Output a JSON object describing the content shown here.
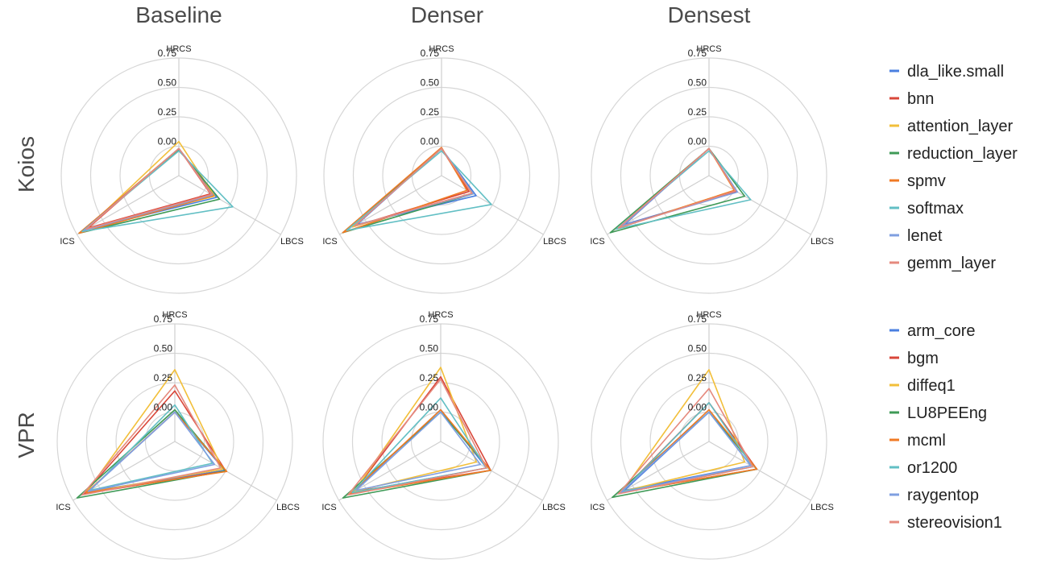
{
  "column_titles": [
    "Baseline",
    "Denser",
    "Densest"
  ],
  "row_titles": [
    "Koios",
    "VPR"
  ],
  "colors": {
    "blue": "#4a7fe0",
    "red": "#d9473a",
    "yellow": "#f2bf3a",
    "green": "#3f9a57",
    "orange": "#f07a24",
    "teal": "#62bfc4",
    "lightblue": "#7f9fe0",
    "salmon": "#e58a7e"
  },
  "legends": [
    {
      "items": [
        {
          "label": "dla_like.small",
          "color": "#4a7fe0"
        },
        {
          "label": "bnn",
          "color": "#d9473a"
        },
        {
          "label": "attention_layer",
          "color": "#f2bf3a"
        },
        {
          "label": "reduction_layer",
          "color": "#3f9a57"
        },
        {
          "label": "spmv",
          "color": "#f07a24"
        },
        {
          "label": "softmax",
          "color": "#62bfc4"
        },
        {
          "label": "lenet",
          "color": "#7f9fe0"
        },
        {
          "label": "gemm_layer",
          "color": "#e58a7e"
        }
      ]
    },
    {
      "items": [
        {
          "label": "arm_core",
          "color": "#4a7fe0"
        },
        {
          "label": "bgm",
          "color": "#d9473a"
        },
        {
          "label": "diffeq1",
          "color": "#f2bf3a"
        },
        {
          "label": "LU8PEEng",
          "color": "#3f9a57"
        },
        {
          "label": "mcml",
          "color": "#f07a24"
        },
        {
          "label": "or1200",
          "color": "#62bfc4"
        },
        {
          "label": "raygentop",
          "color": "#7f9fe0"
        },
        {
          "label": "stereovision1",
          "color": "#e58a7e"
        }
      ]
    }
  ],
  "chart_data": [
    {
      "type": "radar",
      "row": "Koios",
      "column": "Baseline",
      "axes": [
        "HRCS",
        "LBCS",
        "ICS"
      ],
      "ticks": [
        "0.00",
        "0.25",
        "0.50",
        "0.75"
      ],
      "rlim": [
        -0.25,
        0.75
      ],
      "series": [
        {
          "name": "dla_like.small",
          "color": "#4a7fe0",
          "values": [
            -0.02,
            0.12,
            0.67
          ]
        },
        {
          "name": "bnn",
          "color": "#d9473a",
          "values": [
            -0.02,
            0.06,
            0.64
          ]
        },
        {
          "name": "attention_layer",
          "color": "#f2bf3a",
          "values": [
            0.04,
            0.1,
            0.66
          ]
        },
        {
          "name": "reduction_layer",
          "color": "#3f9a57",
          "values": [
            -0.03,
            0.15,
            0.73
          ]
        },
        {
          "name": "spmv",
          "color": "#f07a24",
          "values": [
            -0.02,
            0.09,
            0.73
          ]
        },
        {
          "name": "softmax",
          "color": "#62bfc4",
          "values": [
            -0.04,
            0.28,
            0.7
          ]
        },
        {
          "name": "lenet",
          "color": "#7f9fe0",
          "values": [
            -0.02,
            0.08,
            0.68
          ]
        },
        {
          "name": "gemm_layer",
          "color": "#e58a7e",
          "values": [
            -0.02,
            0.07,
            0.66
          ]
        }
      ]
    },
    {
      "type": "radar",
      "row": "Koios",
      "column": "Denser",
      "axes": [
        "HRCS",
        "LBCS",
        "ICS"
      ],
      "ticks": [
        "0.00",
        "0.25",
        "0.50",
        "0.75"
      ],
      "rlim": [
        -0.25,
        0.75
      ],
      "series": [
        {
          "name": "dla_like.small",
          "color": "#4a7fe0",
          "values": [
            -0.02,
            0.09,
            0.58
          ]
        },
        {
          "name": "bnn",
          "color": "#d9473a",
          "values": [
            -0.02,
            0.02,
            0.62
          ]
        },
        {
          "name": "attention_layer",
          "color": "#f2bf3a",
          "values": [
            -0.02,
            0.05,
            0.62
          ]
        },
        {
          "name": "reduction_layer",
          "color": "#3f9a57",
          "values": [
            -0.02,
            0.06,
            0.72
          ]
        },
        {
          "name": "spmv",
          "color": "#f07a24",
          "values": [
            -0.01,
            0.0,
            0.72
          ]
        },
        {
          "name": "softmax",
          "color": "#62bfc4",
          "values": [
            -0.04,
            0.24,
            0.68
          ]
        },
        {
          "name": "lenet",
          "color": "#7f9fe0",
          "values": [
            -0.02,
            0.06,
            0.6
          ]
        },
        {
          "name": "gemm_layer",
          "color": "#e58a7e",
          "values": [
            -0.02,
            0.05,
            0.6
          ]
        }
      ]
    },
    {
      "type": "radar",
      "row": "Koios",
      "column": "Densest",
      "axes": [
        "HRCS",
        "LBCS",
        "ICS"
      ],
      "ticks": [
        "0.00",
        "0.25",
        "0.50",
        "0.75"
      ],
      "rlim": [
        -0.25,
        0.75
      ],
      "series": [
        {
          "name": "dla_like.small",
          "color": "#4a7fe0",
          "values": [
            -0.02,
            0.02,
            0.58
          ]
        },
        {
          "name": "bnn",
          "color": "#d9473a",
          "values": [
            -0.02,
            0.02,
            0.6
          ]
        },
        {
          "name": "attention_layer",
          "color": "#f2bf3a",
          "values": [
            -0.02,
            0.0,
            0.64
          ]
        },
        {
          "name": "reduction_layer",
          "color": "#3f9a57",
          "values": [
            -0.02,
            0.1,
            0.72
          ]
        },
        {
          "name": "spmv",
          "color": "#f07a24",
          "values": [
            -0.02,
            0.0,
            0.64
          ]
        },
        {
          "name": "softmax",
          "color": "#62bfc4",
          "values": [
            -0.04,
            0.16,
            0.66
          ]
        },
        {
          "name": "lenet",
          "color": "#7f9fe0",
          "values": [
            -0.02,
            0.03,
            0.6
          ]
        },
        {
          "name": "gemm_layer",
          "color": "#e58a7e",
          "values": [
            -0.02,
            0.01,
            0.64
          ]
        }
      ]
    },
    {
      "type": "radar",
      "row": "VPR",
      "column": "Baseline",
      "axes": [
        "HRCS",
        "LBCS",
        "ICS"
      ],
      "ticks": [
        "0.00",
        "0.25",
        "0.50",
        "0.75"
      ],
      "rlim": [
        -0.25,
        0.75
      ],
      "series": [
        {
          "name": "arm_core",
          "color": "#4a7fe0",
          "values": [
            0.0,
            0.24,
            0.6
          ]
        },
        {
          "name": "bgm",
          "color": "#d9473a",
          "values": [
            0.18,
            0.25,
            0.64
          ]
        },
        {
          "name": "diffeq1",
          "color": "#f2bf3a",
          "values": [
            0.36,
            0.22,
            0.62
          ]
        },
        {
          "name": "LU8PEEng",
          "color": "#3f9a57",
          "values": [
            0.02,
            0.25,
            0.71
          ]
        },
        {
          "name": "mcml",
          "color": "#f07a24",
          "values": [
            0.0,
            0.26,
            0.62
          ]
        },
        {
          "name": "or1200",
          "color": "#62bfc4",
          "values": [
            0.06,
            0.12,
            0.58
          ]
        },
        {
          "name": "raygentop",
          "color": "#7f9fe0",
          "values": [
            0.0,
            0.14,
            0.6
          ]
        },
        {
          "name": "stereovision1",
          "color": "#e58a7e",
          "values": [
            0.23,
            0.2,
            0.66
          ]
        }
      ]
    },
    {
      "type": "radar",
      "row": "VPR",
      "column": "Denser",
      "axes": [
        "HRCS",
        "LBCS",
        "ICS"
      ],
      "ticks": [
        "0.00",
        "0.25",
        "0.50",
        "0.75"
      ],
      "rlim": [
        -0.25,
        0.75
      ],
      "series": [
        {
          "name": "arm_core",
          "color": "#4a7fe0",
          "values": [
            0.02,
            0.2,
            0.62
          ]
        },
        {
          "name": "bgm",
          "color": "#d9473a",
          "values": [
            0.3,
            0.24,
            0.6
          ]
        },
        {
          "name": "diffeq1",
          "color": "#f2bf3a",
          "values": [
            0.38,
            0.1,
            0.6
          ]
        },
        {
          "name": "LU8PEEng",
          "color": "#3f9a57",
          "values": [
            0.0,
            0.24,
            0.71
          ]
        },
        {
          "name": "mcml",
          "color": "#f07a24",
          "values": [
            0.02,
            0.24,
            0.64
          ]
        },
        {
          "name": "or1200",
          "color": "#62bfc4",
          "values": [
            0.12,
            0.2,
            0.62
          ]
        },
        {
          "name": "raygentop",
          "color": "#7f9fe0",
          "values": [
            0.0,
            0.14,
            0.58
          ]
        },
        {
          "name": "stereovision1",
          "color": "#e58a7e",
          "values": [
            0.28,
            0.2,
            0.66
          ]
        }
      ]
    },
    {
      "type": "radar",
      "row": "VPR",
      "column": "Densest",
      "axes": [
        "HRCS",
        "LBCS",
        "ICS"
      ],
      "ticks": [
        "0.00",
        "0.25",
        "0.50",
        "0.75"
      ],
      "rlim": [
        -0.25,
        0.75
      ],
      "series": [
        {
          "name": "arm_core",
          "color": "#4a7fe0",
          "values": [
            0.0,
            0.16,
            0.58
          ]
        },
        {
          "name": "bgm",
          "color": "#d9473a",
          "values": [
            0.08,
            0.22,
            0.62
          ]
        },
        {
          "name": "diffeq1",
          "color": "#f2bf3a",
          "values": [
            0.36,
            0.1,
            0.6
          ]
        },
        {
          "name": "LU8PEEng",
          "color": "#3f9a57",
          "values": [
            0.0,
            0.22,
            0.7
          ]
        },
        {
          "name": "mcml",
          "color": "#f07a24",
          "values": [
            0.02,
            0.22,
            0.62
          ]
        },
        {
          "name": "or1200",
          "color": "#62bfc4",
          "values": [
            0.08,
            0.18,
            0.6
          ]
        },
        {
          "name": "raygentop",
          "color": "#7f9fe0",
          "values": [
            0.0,
            0.16,
            0.62
          ]
        },
        {
          "name": "stereovision1",
          "color": "#e58a7e",
          "values": [
            0.2,
            0.18,
            0.64
          ]
        }
      ]
    }
  ]
}
